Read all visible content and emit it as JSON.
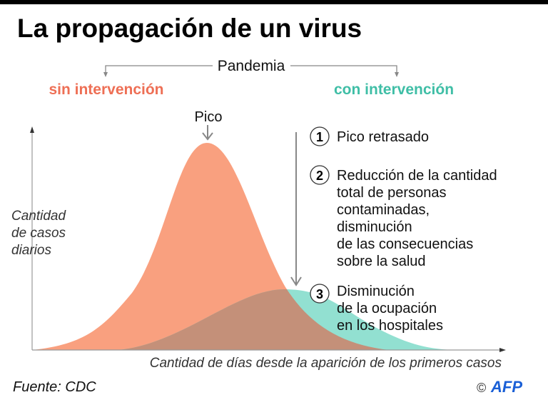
{
  "title": "La propagación de un virus",
  "header": {
    "pandemic_label": "Pandemia",
    "without_label": "sin intervención",
    "with_label": "con intervención"
  },
  "peak_label": "Pico",
  "y_axis_label": [
    "Cantidad",
    "de casos",
    "diarios"
  ],
  "x_axis_label": "Cantidad de días desde la aparición de los primeros casos",
  "notes": [
    {
      "number": "1",
      "lines": [
        "Pico retrasado"
      ]
    },
    {
      "number": "2",
      "lines": [
        "Reducción de la cantidad",
        "total de personas",
        "contaminadas,",
        "disminución",
        "de las consecuencias",
        "sobre la salud"
      ]
    },
    {
      "number": "3",
      "lines": [
        "Disminución",
        "de la ocupación",
        "en los hospitales"
      ]
    }
  ],
  "source": "Fuente: CDC",
  "credit": {
    "copyright": "©",
    "logo": "AFP"
  },
  "colors": {
    "without": "#f9a07f",
    "with": "#92e0d1",
    "overlap": "#c49079",
    "without_text": "#ee6f55",
    "with_text": "#3fbea6",
    "logo": "#1a5fd6"
  }
}
